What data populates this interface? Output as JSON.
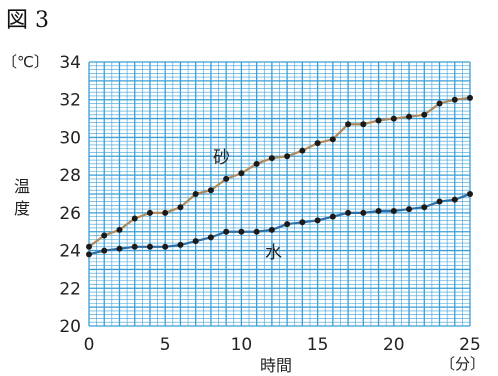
{
  "figure_title": "図 3",
  "chart_data": {
    "type": "line",
    "x": [
      0,
      1,
      2,
      3,
      4,
      5,
      6,
      7,
      8,
      9,
      10,
      11,
      12,
      13,
      14,
      15,
      16,
      17,
      18,
      19,
      20,
      21,
      22,
      23,
      24,
      25
    ],
    "series": [
      {
        "name": "砂",
        "color": "#b08a5a",
        "values": [
          24.2,
          24.8,
          25.1,
          25.7,
          26.0,
          26.0,
          26.3,
          27.0,
          27.2,
          27.8,
          28.1,
          28.6,
          28.9,
          29.0,
          29.3,
          29.7,
          29.9,
          30.7,
          30.7,
          30.9,
          31.0,
          31.1,
          31.2,
          31.8,
          32.0,
          32.1
        ]
      },
      {
        "name": "水",
        "color": "#2e6fa8",
        "values": [
          23.8,
          24.0,
          24.1,
          24.2,
          24.2,
          24.2,
          24.3,
          24.5,
          24.7,
          25.0,
          25.0,
          25.0,
          25.1,
          25.4,
          25.5,
          25.6,
          25.8,
          26.0,
          26.0,
          26.1,
          26.1,
          26.2,
          26.3,
          26.6,
          26.7,
          27.0
        ]
      }
    ],
    "xlim": [
      0,
      25
    ],
    "ylim": [
      20,
      34
    ],
    "x_ticks": [
      "0",
      "5",
      "10",
      "15",
      "20",
      "25"
    ],
    "y_ticks": [
      "20",
      "22",
      "24",
      "26",
      "28",
      "30",
      "32",
      "34"
    ],
    "xlabel": "時間",
    "ylabel": "温度",
    "x_unit": "〔分〕",
    "y_unit": "〔℃〕",
    "grid": true,
    "grid_color": "#3a9fd8",
    "background_color": "#ffffff"
  }
}
